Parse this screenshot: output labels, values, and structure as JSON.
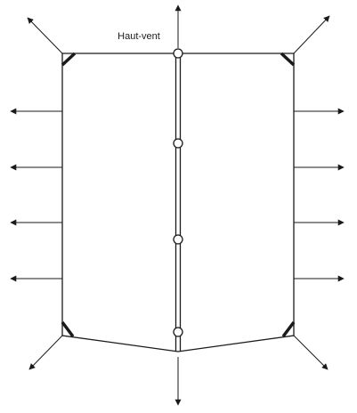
{
  "diagram": {
    "label": "Haut-vent",
    "colors": {
      "stroke": "#1a1a1a",
      "node_fill": "#ffffff",
      "background": "#ffffff"
    }
  }
}
